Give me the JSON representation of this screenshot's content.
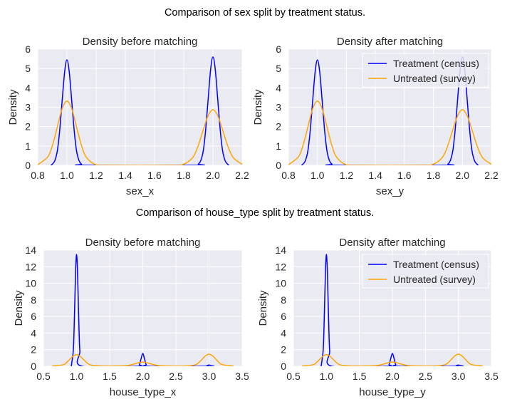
{
  "suptitles": [
    "Comparison of sex split by treatment status.",
    "Comparison of house_type split by treatment status."
  ],
  "colors": {
    "treatment": "#0000ff",
    "untreated": "#ffa500",
    "plot_bg": "#eaeaf2",
    "grid": "#ffffff"
  },
  "chart_data": [
    {
      "type": "line",
      "title": "Density before matching",
      "xlabel": "sex_x",
      "ylabel": "Density",
      "xlim": [
        0.8,
        2.2
      ],
      "ylim": [
        0,
        6
      ],
      "xticks": [
        "0.8",
        "1.0",
        "1.2",
        "1.4",
        "1.6",
        "1.8",
        "2.0",
        "2.2"
      ],
      "yticks": [
        "0",
        "1",
        "2",
        "3",
        "4",
        "5",
        "6"
      ],
      "grid": true,
      "legend": null,
      "series": [
        {
          "name": "Treatment (census)",
          "color": "#0000ff",
          "points": [
            [
              0.89,
              0
            ],
            [
              0.9,
              0.06
            ],
            [
              0.917,
              0.24
            ],
            [
              0.934,
              0.74
            ],
            [
              0.95,
              1.77
            ],
            [
              0.967,
              3.31
            ],
            [
              0.984,
              4.81
            ],
            [
              1.0,
              5.45
            ],
            [
              1.016,
              4.81
            ],
            [
              1.033,
              3.31
            ],
            [
              1.05,
              1.77
            ],
            [
              1.066,
              0.74
            ],
            [
              1.083,
              0.24
            ],
            [
              1.1,
              0.06
            ],
            [
              1.12,
              0
            ],
            [
              1.88,
              0
            ],
            [
              1.9,
              0.06
            ],
            [
              1.917,
              0.25
            ],
            [
              1.934,
              0.76
            ],
            [
              1.95,
              1.82
            ],
            [
              1.967,
              3.4
            ],
            [
              1.984,
              4.94
            ],
            [
              2.0,
              5.6
            ],
            [
              2.016,
              4.94
            ],
            [
              2.033,
              3.4
            ],
            [
              2.05,
              1.82
            ],
            [
              2.066,
              0.76
            ],
            [
              2.083,
              0.25
            ],
            [
              2.1,
              0.06
            ],
            [
              2.11,
              0
            ]
          ]
        },
        {
          "name": "Untreated (survey)",
          "color": "#ffa500",
          "points": [
            [
              0.8,
              0.03
            ],
            [
              0.87,
              0.45
            ],
            [
              0.9025,
              1.08
            ],
            [
              0.935,
              2.01
            ],
            [
              0.9675,
              2.93
            ],
            [
              1.0,
              3.32
            ],
            [
              1.0325,
              2.93
            ],
            [
              1.065,
              2.01
            ],
            [
              1.0975,
              1.08
            ],
            [
              1.13,
              0.45
            ],
            [
              1.195,
              0.04
            ],
            [
              1.3,
              0
            ],
            [
              1.7,
              0
            ],
            [
              1.79,
              0.03
            ],
            [
              1.86,
              0.39
            ],
            [
              1.895,
              0.93
            ],
            [
              1.93,
              1.74
            ],
            [
              1.965,
              2.53
            ],
            [
              2.0,
              2.87
            ],
            [
              2.035,
              2.53
            ],
            [
              2.07,
              1.74
            ],
            [
              2.105,
              0.93
            ],
            [
              2.14,
              0.39
            ],
            [
              2.2,
              0.05
            ]
          ]
        }
      ]
    },
    {
      "type": "line",
      "title": "Density after matching",
      "xlabel": "sex_y",
      "ylabel": "Density",
      "xlim": [
        0.8,
        2.2
      ],
      "ylim": [
        0,
        6
      ],
      "xticks": [
        "0.8",
        "1.0",
        "1.2",
        "1.4",
        "1.6",
        "1.8",
        "2.0",
        "2.2"
      ],
      "yticks": [
        "0",
        "1",
        "2",
        "3",
        "4",
        "5",
        "6"
      ],
      "grid": true,
      "legend": "top-right",
      "series": [
        {
          "name": "Treatment (census)",
          "color": "#0000ff",
          "points": [
            [
              0.89,
              0
            ],
            [
              0.9,
              0.06
            ],
            [
              0.917,
              0.24
            ],
            [
              0.934,
              0.74
            ],
            [
              0.95,
              1.77
            ],
            [
              0.967,
              3.31
            ],
            [
              0.984,
              4.81
            ],
            [
              1.0,
              5.45
            ],
            [
              1.016,
              4.81
            ],
            [
              1.033,
              3.31
            ],
            [
              1.05,
              1.77
            ],
            [
              1.066,
              0.74
            ],
            [
              1.083,
              0.24
            ],
            [
              1.1,
              0.06
            ],
            [
              1.12,
              0
            ],
            [
              1.88,
              0
            ],
            [
              1.9,
              0.06
            ],
            [
              1.917,
              0.25
            ],
            [
              1.934,
              0.76
            ],
            [
              1.95,
              1.82
            ],
            [
              1.967,
              3.4
            ],
            [
              1.984,
              4.94
            ],
            [
              2.0,
              5.6
            ],
            [
              2.016,
              4.94
            ],
            [
              2.033,
              3.4
            ],
            [
              2.05,
              1.82
            ],
            [
              2.066,
              0.76
            ],
            [
              2.083,
              0.25
            ],
            [
              2.1,
              0.06
            ],
            [
              2.11,
              0
            ]
          ]
        },
        {
          "name": "Untreated (survey)",
          "color": "#ffa500",
          "points": [
            [
              0.8,
              0.03
            ],
            [
              0.87,
              0.45
            ],
            [
              0.9025,
              1.08
            ],
            [
              0.935,
              2.01
            ],
            [
              0.9675,
              2.93
            ],
            [
              1.0,
              3.32
            ],
            [
              1.0325,
              2.93
            ],
            [
              1.065,
              2.01
            ],
            [
              1.0975,
              1.08
            ],
            [
              1.13,
              0.45
            ],
            [
              1.195,
              0.04
            ],
            [
              1.3,
              0
            ],
            [
              1.7,
              0
            ],
            [
              1.79,
              0.03
            ],
            [
              1.86,
              0.39
            ],
            [
              1.895,
              0.93
            ],
            [
              1.93,
              1.74
            ],
            [
              1.965,
              2.53
            ],
            [
              2.0,
              2.87
            ],
            [
              2.035,
              2.53
            ],
            [
              2.07,
              1.74
            ],
            [
              2.105,
              0.93
            ],
            [
              2.14,
              0.39
            ],
            [
              2.2,
              0.05
            ]
          ]
        }
      ]
    },
    {
      "type": "line",
      "title": "Density before matching",
      "xlabel": "house_type_x",
      "ylabel": "Density",
      "xlim": [
        0.5,
        3.5
      ],
      "ylim": [
        0,
        14
      ],
      "xticks": [
        "0.5",
        "1.0",
        "1.5",
        "2.0",
        "2.5",
        "3.0",
        "3.5"
      ],
      "yticks": [
        "0",
        "2",
        "4",
        "6",
        "8",
        "10",
        "12",
        "14"
      ],
      "grid": true,
      "legend": null,
      "series": [
        {
          "name": "Treatment (census)",
          "color": "#0000ff",
          "points": [
            [
              0.92,
              0
            ],
            [
              0.95,
              1.82
            ],
            [
              0.9625,
              4.39
            ],
            [
              0.975,
              8.19
            ],
            [
              0.9875,
              11.9
            ],
            [
              1.0,
              13.5
            ],
            [
              1.0125,
              11.9
            ],
            [
              1.025,
              8.19
            ],
            [
              1.0375,
              4.39
            ],
            [
              1.05,
              1.82
            ],
            [
              1.08,
              0
            ],
            [
              1.92,
              0
            ],
            [
              1.95,
              0.21
            ],
            [
              1.975,
              0.94
            ],
            [
              2.0,
              1.55
            ],
            [
              2.025,
              0.94
            ],
            [
              2.05,
              0.21
            ],
            [
              2.08,
              0
            ],
            [
              2.92,
              0
            ],
            [
              2.97,
              0.08
            ],
            [
              3.0,
              0.15
            ],
            [
              3.03,
              0.08
            ],
            [
              3.08,
              0
            ]
          ]
        },
        {
          "name": "Untreated (survey)",
          "color": "#ffa500",
          "points": [
            [
              0.63,
              0.02
            ],
            [
              0.8,
              0.19
            ],
            [
              0.85,
              0.46
            ],
            [
              0.9,
              0.85
            ],
            [
              0.95,
              1.23
            ],
            [
              1.0,
              1.4
            ],
            [
              1.05,
              1.23
            ],
            [
              1.1,
              0.85
            ],
            [
              1.15,
              0.46
            ],
            [
              1.2,
              0.19
            ],
            [
              1.3,
              0.05
            ],
            [
              1.5,
              0.02
            ],
            [
              1.76,
              0.07
            ],
            [
              1.88,
              0.3
            ],
            [
              2.0,
              0.5
            ],
            [
              2.12,
              0.3
            ],
            [
              2.24,
              0.07
            ],
            [
              2.5,
              0.01
            ],
            [
              2.7,
              0.05
            ],
            [
              2.8,
              0.2
            ],
            [
              2.85,
              0.47
            ],
            [
              2.9,
              0.88
            ],
            [
              2.95,
              1.28
            ],
            [
              3.0,
              1.45
            ],
            [
              3.05,
              1.28
            ],
            [
              3.1,
              0.88
            ],
            [
              3.15,
              0.47
            ],
            [
              3.2,
              0.2
            ],
            [
              3.37,
              0.02
            ]
          ]
        }
      ]
    },
    {
      "type": "line",
      "title": "Density after matching",
      "xlabel": "house_type_y",
      "ylabel": "Density",
      "xlim": [
        0.5,
        3.5
      ],
      "ylim": [
        0,
        14
      ],
      "xticks": [
        "0.5",
        "1.0",
        "1.5",
        "2.0",
        "2.5",
        "3.0",
        "3.5"
      ],
      "yticks": [
        "0",
        "2",
        "4",
        "6",
        "8",
        "10",
        "12",
        "14"
      ],
      "grid": true,
      "legend": "top-right",
      "series": [
        {
          "name": "Treatment (census)",
          "color": "#0000ff",
          "points": [
            [
              0.92,
              0
            ],
            [
              0.95,
              1.82
            ],
            [
              0.9625,
              4.39
            ],
            [
              0.975,
              8.19
            ],
            [
              0.9875,
              11.9
            ],
            [
              1.0,
              13.5
            ],
            [
              1.0125,
              11.9
            ],
            [
              1.025,
              8.19
            ],
            [
              1.0375,
              4.39
            ],
            [
              1.05,
              1.82
            ],
            [
              1.08,
              0
            ],
            [
              1.92,
              0
            ],
            [
              1.95,
              0.21
            ],
            [
              1.975,
              0.94
            ],
            [
              2.0,
              1.55
            ],
            [
              2.025,
              0.94
            ],
            [
              2.05,
              0.21
            ],
            [
              2.08,
              0
            ],
            [
              2.92,
              0
            ],
            [
              2.97,
              0.08
            ],
            [
              3.0,
              0.15
            ],
            [
              3.03,
              0.08
            ],
            [
              3.08,
              0
            ]
          ]
        },
        {
          "name": "Untreated (survey)",
          "color": "#ffa500",
          "points": [
            [
              0.63,
              0.02
            ],
            [
              0.8,
              0.19
            ],
            [
              0.85,
              0.46
            ],
            [
              0.9,
              0.85
            ],
            [
              0.95,
              1.23
            ],
            [
              1.0,
              1.4
            ],
            [
              1.05,
              1.23
            ],
            [
              1.1,
              0.85
            ],
            [
              1.15,
              0.46
            ],
            [
              1.2,
              0.19
            ],
            [
              1.3,
              0.05
            ],
            [
              1.5,
              0.02
            ],
            [
              1.76,
              0.07
            ],
            [
              1.88,
              0.3
            ],
            [
              2.0,
              0.5
            ],
            [
              2.12,
              0.3
            ],
            [
              2.24,
              0.07
            ],
            [
              2.5,
              0.01
            ],
            [
              2.7,
              0.05
            ],
            [
              2.8,
              0.2
            ],
            [
              2.85,
              0.47
            ],
            [
              2.9,
              0.88
            ],
            [
              2.95,
              1.28
            ],
            [
              3.0,
              1.45
            ],
            [
              3.05,
              1.28
            ],
            [
              3.1,
              0.88
            ],
            [
              3.15,
              0.47
            ],
            [
              3.2,
              0.2
            ],
            [
              3.37,
              0.02
            ]
          ]
        }
      ]
    }
  ]
}
